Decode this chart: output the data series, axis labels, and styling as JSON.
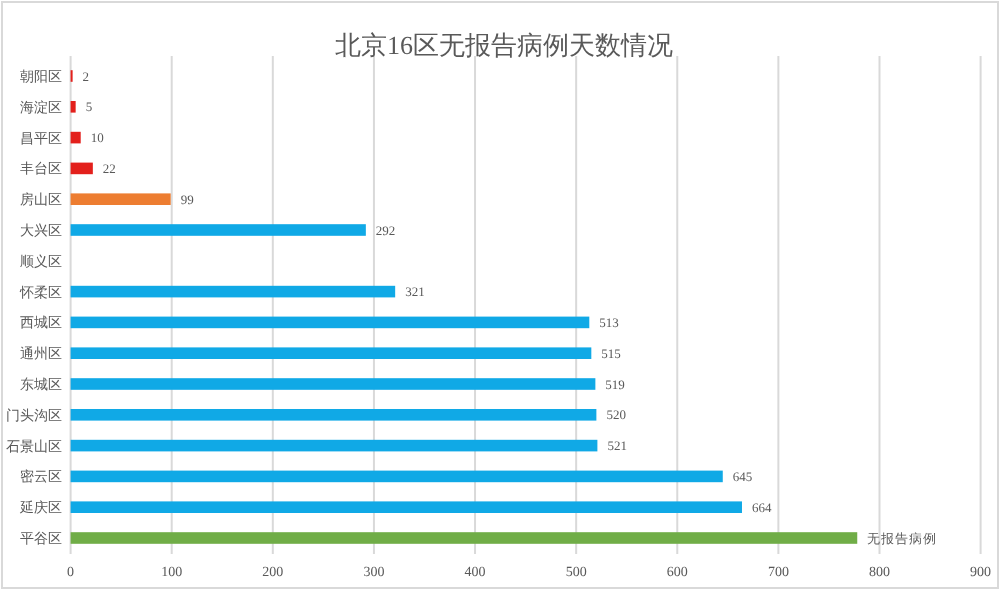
{
  "chart_data": {
    "type": "bar",
    "orientation": "horizontal",
    "title": "北京16区无报告病例天数情况",
    "categories": [
      "朝阳区",
      "海淀区",
      "昌平区",
      "丰台区",
      "房山区",
      "大兴区",
      "顺义区",
      "怀柔区",
      "西城区",
      "通州区",
      "东城区",
      "门头沟区",
      "石景山区",
      "密云区",
      "延庆区",
      "平谷区"
    ],
    "values": [
      2,
      5,
      10,
      22,
      99,
      292,
      null,
      321,
      513,
      515,
      519,
      520,
      521,
      645,
      664,
      778
    ],
    "value_labels": [
      "2",
      "5",
      "10",
      "22",
      "99",
      "292",
      null,
      "321",
      "513",
      "515",
      "519",
      "520",
      "521",
      "645",
      "664",
      "无报告病例"
    ],
    "colors": [
      "#e3201c",
      "#e3201c",
      "#e3201c",
      "#e3201c",
      "#ed7d31",
      "#10a9e6",
      null,
      "#10a9e6",
      "#10a9e6",
      "#10a9e6",
      "#10a9e6",
      "#10a9e6",
      "#10a9e6",
      "#10a9e6",
      "#10a9e6",
      "#70ad47"
    ],
    "xlim": [
      0,
      900
    ],
    "xticks": [
      0,
      100,
      200,
      300,
      400,
      500,
      600,
      700,
      800,
      900
    ],
    "grid": "x"
  }
}
